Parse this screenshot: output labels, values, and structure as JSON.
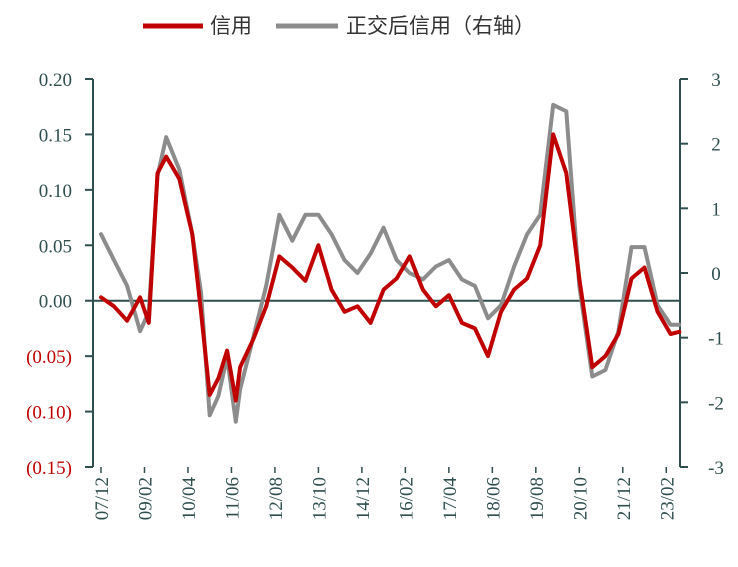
{
  "chart_data": {
    "type": "line",
    "legend": [
      "信用",
      "正交后信用（右轴）"
    ],
    "legend_position": "top",
    "grid": false,
    "categories": [
      "07/12",
      "09/02",
      "10/04",
      "11/06",
      "12/08",
      "13/10",
      "14/12",
      "16/02",
      "17/04",
      "18/06",
      "19/08",
      "20/10",
      "21/12",
      "23/02"
    ],
    "y_left": {
      "ylim": [
        -0.15,
        0.2
      ],
      "ticks": [
        "0.20",
        "0.15",
        "0.10",
        "0.05",
        "0.00",
        "(0.05)",
        "(0.10)",
        "(0.15)"
      ]
    },
    "y_right": {
      "ylim": [
        -3,
        3
      ],
      "ticks": [
        "3",
        "2",
        "1",
        "0",
        "-1",
        "-2",
        "-3"
      ]
    },
    "series": [
      {
        "name": "信用",
        "axis": "left",
        "color": "#c00000",
        "x": [
          0,
          0.3,
          0.6,
          0.9,
          1.1,
          1.3,
          1.5,
          1.8,
          2.1,
          2.3,
          2.5,
          2.7,
          2.9,
          3.1,
          3.2,
          3.5,
          3.8,
          4.1,
          4.4,
          4.7,
          5.0,
          5.3,
          5.6,
          5.9,
          6.2,
          6.5,
          6.8,
          7.1,
          7.4,
          7.7,
          8.0,
          8.3,
          8.6,
          8.9,
          9.2,
          9.5,
          9.8,
          10.1,
          10.4,
          10.7,
          11.0,
          11.3,
          11.6,
          11.9,
          12.2,
          12.5,
          12.8,
          13.1,
          13.3
        ],
        "values": [
          0.003,
          -0.005,
          -0.018,
          0.003,
          -0.02,
          0.115,
          0.13,
          0.11,
          0.06,
          -0.01,
          -0.085,
          -0.07,
          -0.045,
          -0.09,
          -0.06,
          -0.035,
          -0.005,
          0.04,
          0.03,
          0.018,
          0.05,
          0.01,
          -0.01,
          -0.005,
          -0.02,
          0.01,
          0.02,
          0.04,
          0.01,
          -0.005,
          0.005,
          -0.02,
          -0.025,
          -0.05,
          -0.01,
          0.01,
          0.02,
          0.05,
          0.15,
          0.115,
          0.02,
          -0.06,
          -0.05,
          -0.03,
          0.02,
          0.03,
          -0.01,
          -0.03,
          -0.028
        ]
      },
      {
        "name": "正交后信用（右轴）",
        "axis": "right",
        "color": "#8c8c8c",
        "x": [
          0,
          0.3,
          0.6,
          0.9,
          1.1,
          1.3,
          1.5,
          1.8,
          2.1,
          2.3,
          2.5,
          2.7,
          2.9,
          3.1,
          3.2,
          3.5,
          3.8,
          4.1,
          4.4,
          4.7,
          5.0,
          5.3,
          5.6,
          5.9,
          6.2,
          6.5,
          6.8,
          7.1,
          7.4,
          7.7,
          8.0,
          8.3,
          8.6,
          8.9,
          9.2,
          9.5,
          9.8,
          10.1,
          10.4,
          10.7,
          11.0,
          11.3,
          11.6,
          11.9,
          12.2,
          12.5,
          12.8,
          13.1,
          13.3
        ],
        "values": [
          0.6,
          0.2,
          -0.2,
          -0.9,
          -0.6,
          1.5,
          2.1,
          1.6,
          0.6,
          -0.3,
          -2.2,
          -1.9,
          -1.3,
          -2.3,
          -1.8,
          -1.0,
          -0.2,
          0.9,
          0.5,
          0.9,
          0.9,
          0.6,
          0.2,
          0.0,
          0.3,
          0.7,
          0.2,
          0.0,
          -0.1,
          0.1,
          0.2,
          -0.1,
          -0.2,
          -0.7,
          -0.5,
          0.1,
          0.6,
          0.9,
          2.6,
          2.5,
          -0.2,
          -1.6,
          -1.5,
          -0.9,
          0.4,
          0.4,
          -0.5,
          -0.8,
          -0.8
        ]
      }
    ]
  },
  "colors": {
    "axis": "#2f4f4f",
    "tick_text": "#2f4f4f",
    "negative_tick_text": "#c00000",
    "zero_line": "#2f4f4f"
  }
}
